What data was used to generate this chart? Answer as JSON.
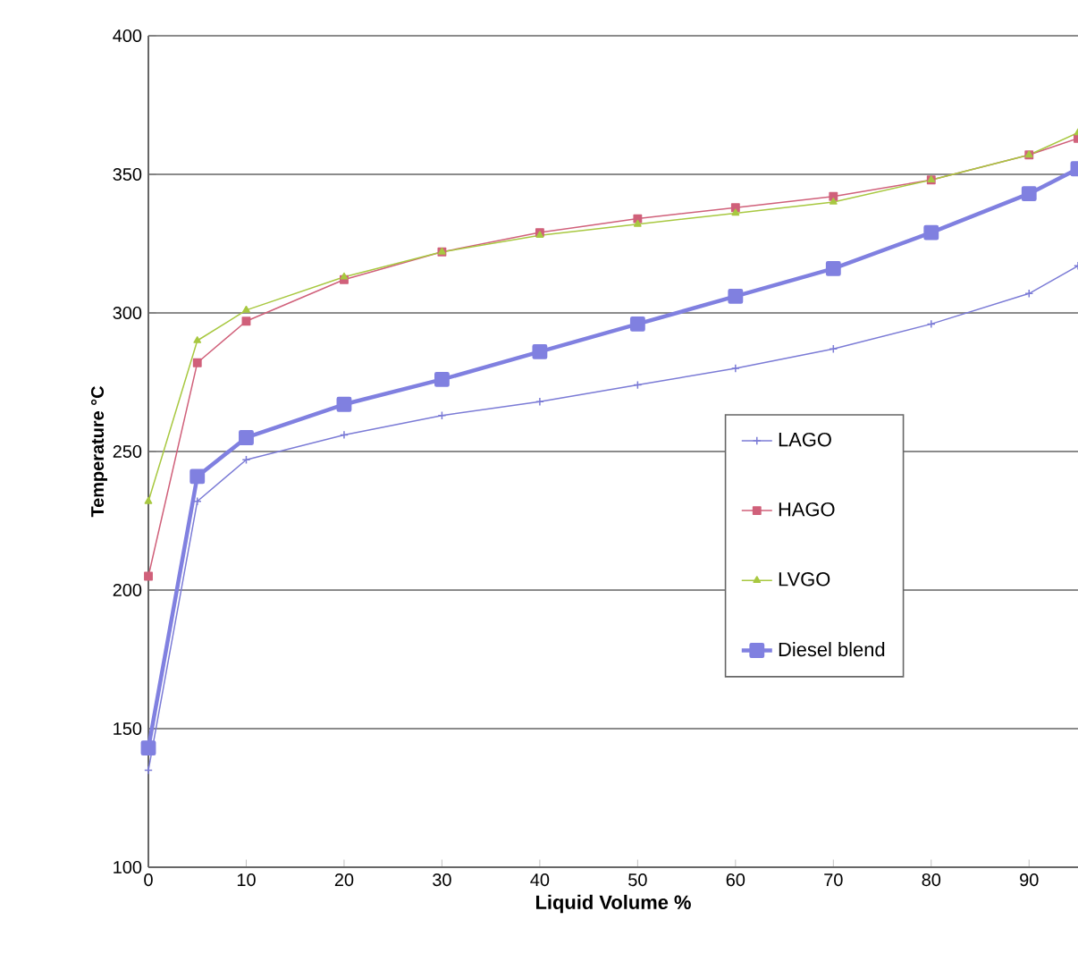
{
  "chart_data": {
    "type": "line",
    "xlabel": "Liquid Volume %",
    "ylabel": "Temperature °C",
    "x": [
      0,
      5,
      10,
      20,
      30,
      40,
      50,
      60,
      70,
      80,
      90,
      95
    ],
    "series": [
      {
        "name": "LAGO",
        "color": "#7b7bd6",
        "marker": "cross",
        "values": [
          135,
          232,
          247,
          256,
          263,
          268,
          274,
          280,
          287,
          296,
          307,
          317
        ]
      },
      {
        "name": "HAGO",
        "color": "#d0607a",
        "marker": "square",
        "values": [
          205,
          282,
          297,
          312,
          322,
          329,
          334,
          338,
          342,
          348,
          357,
          363
        ]
      },
      {
        "name": "LVGO",
        "color": "#a8c840",
        "marker": "triangle",
        "values": [
          232,
          290,
          301,
          313,
          322,
          328,
          332,
          336,
          340,
          348,
          357,
          365
        ]
      },
      {
        "name": "Diesel blend",
        "color": "#8080e0",
        "marker": "square",
        "values": [
          143,
          241,
          255,
          267,
          276,
          286,
          296,
          306,
          316,
          329,
          343,
          352
        ]
      }
    ],
    "xlim": [
      0,
      95
    ],
    "xticks": [
      0,
      10,
      20,
      30,
      40,
      50,
      60,
      70,
      80,
      90
    ],
    "ylim": [
      100,
      400
    ],
    "yticks": [
      100,
      150,
      200,
      250,
      300,
      350,
      400
    ],
    "grid": "y",
    "legend": "right",
    "line_style": "solid"
  }
}
